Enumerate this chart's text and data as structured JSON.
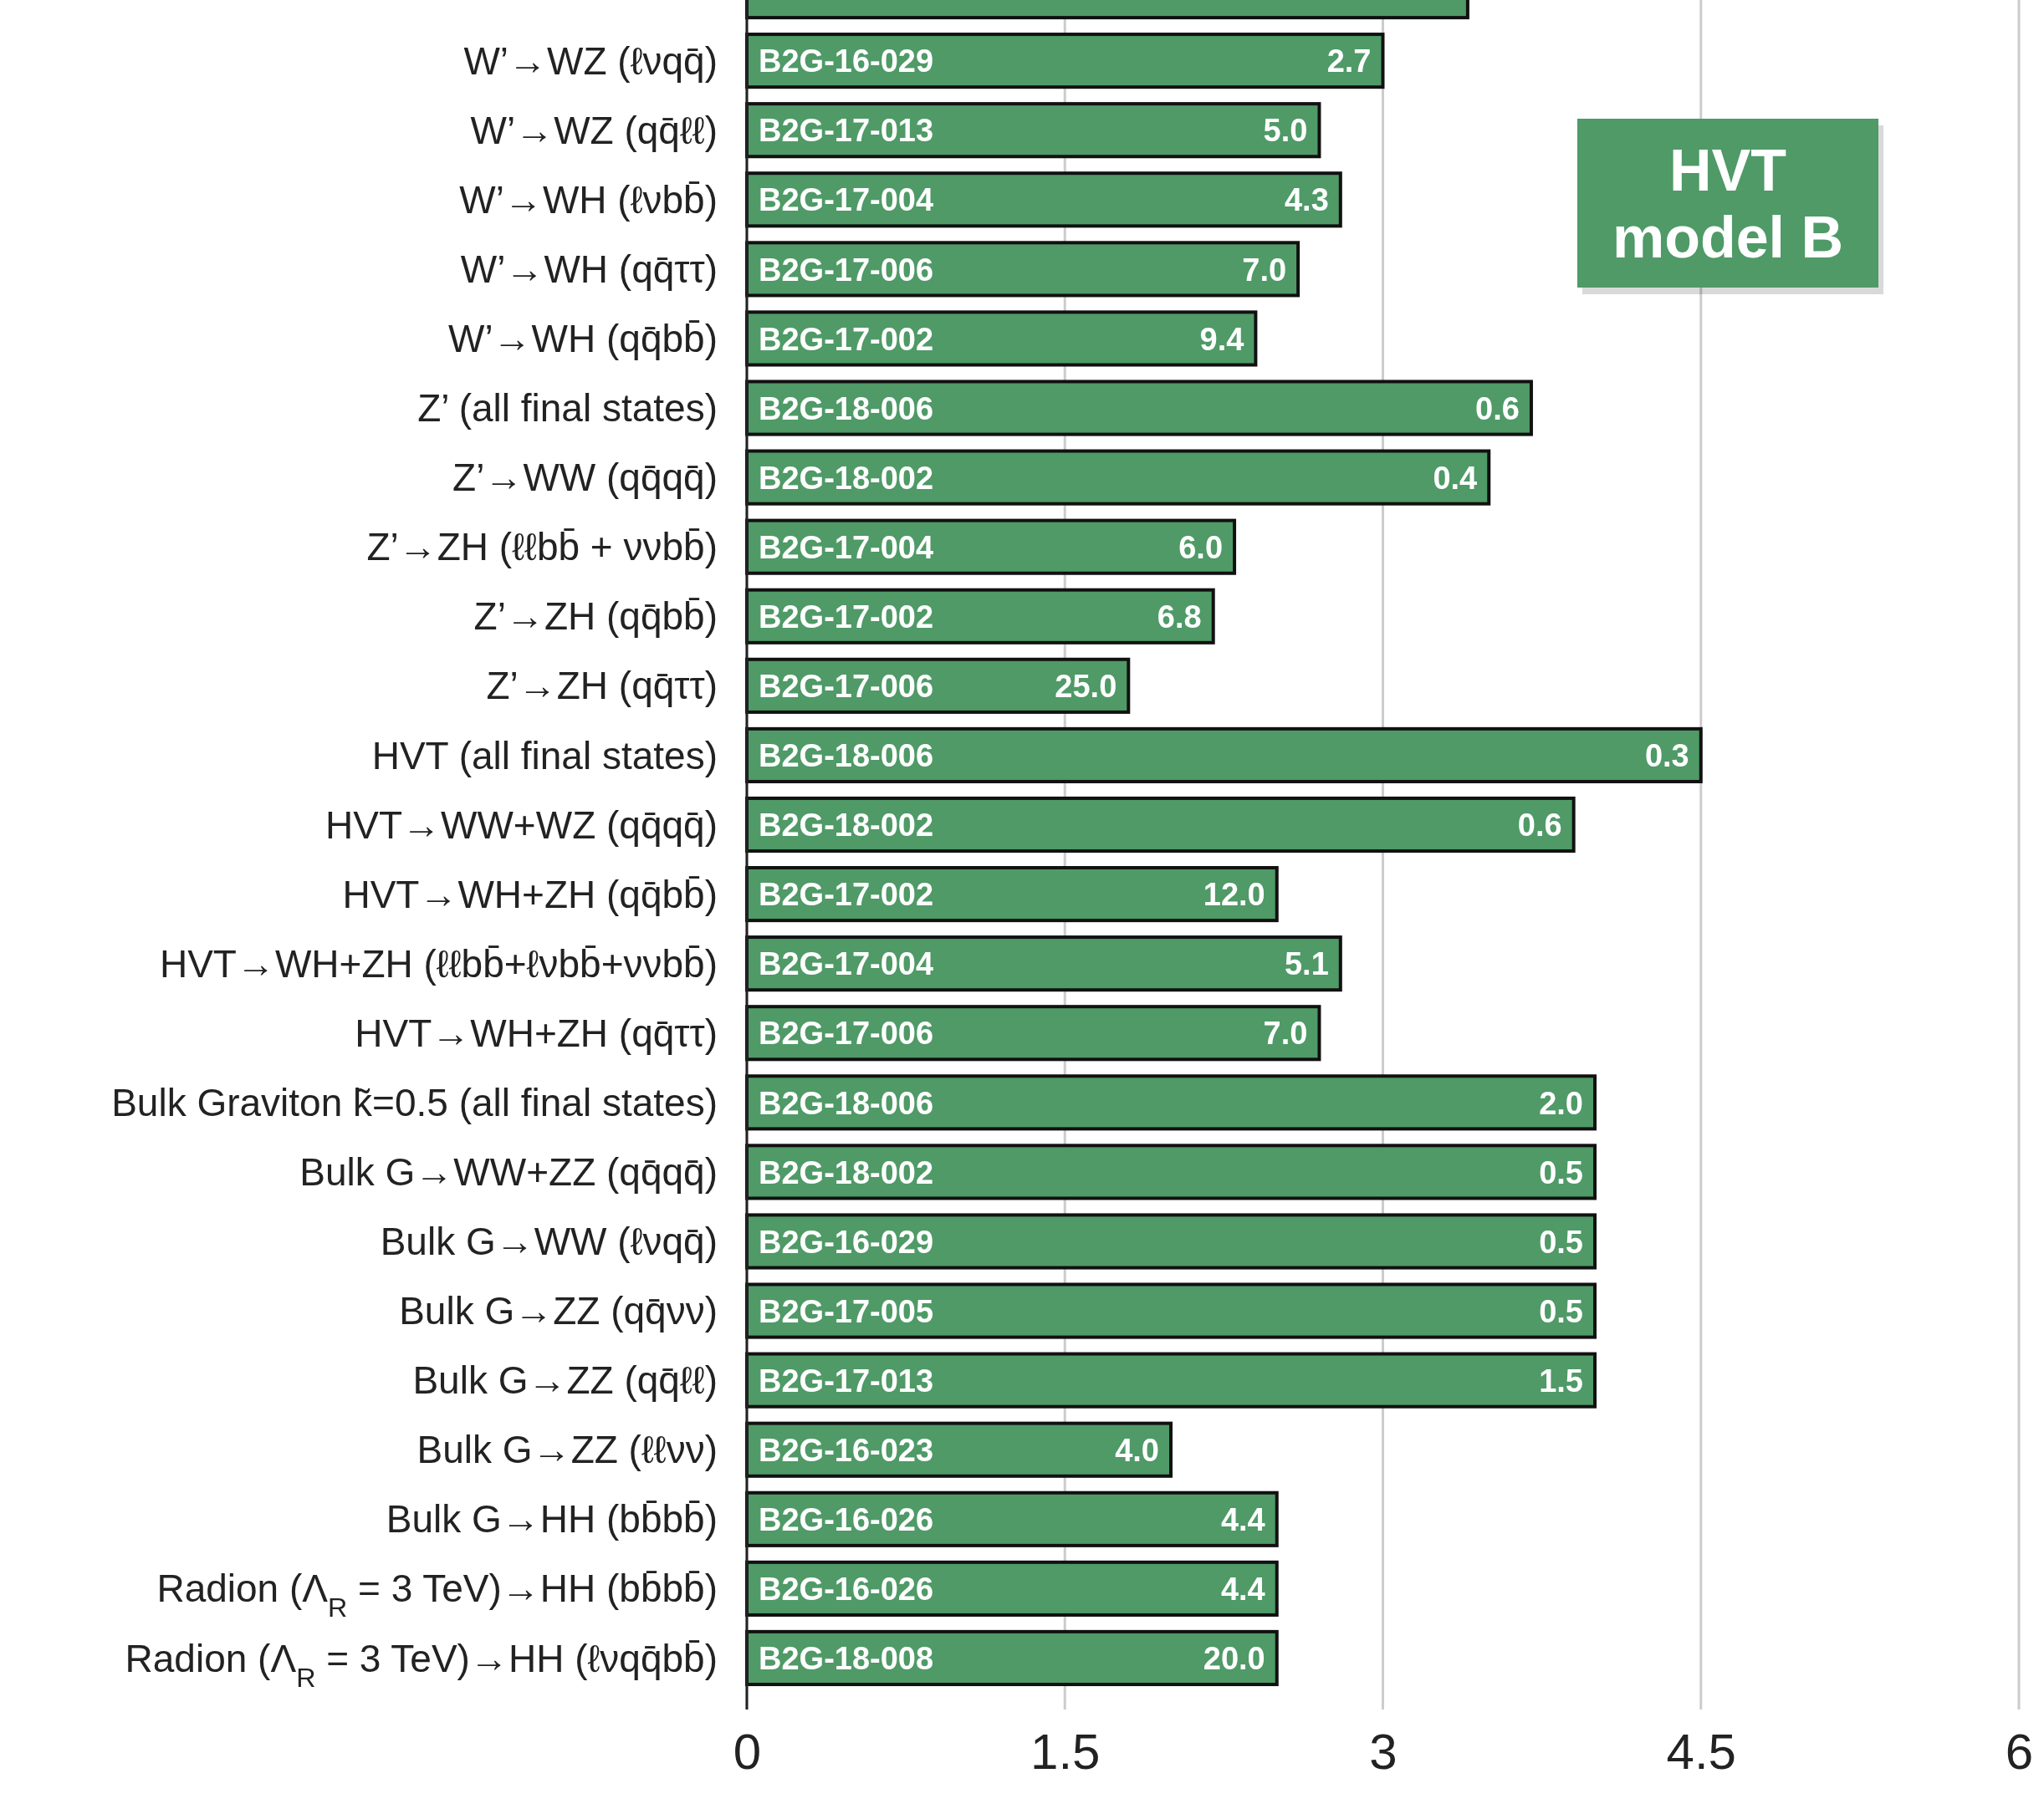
{
  "chart_data": {
    "type": "bar",
    "orientation": "horizontal",
    "categories": [
      null,
      "W’→WZ (ℓνqq̄)",
      "W’→WZ (qq̄ℓℓ)",
      "W’→WH (ℓνbb̄)",
      "W’→WH (qq̄ττ)",
      "W’→WH (qq̄bb̄)",
      "Z’ (all final states)",
      "Z’→WW (qq̄qq̄)",
      "Z’→ZH (ℓℓbb̄ + ννbb̄)",
      "Z’→ZH (qq̄bb̄)",
      "Z’→ZH (qq̄ττ)",
      "HVT (all final states)",
      "HVT→WW+WZ (qq̄qq̄)",
      "HVT→WH+ZH (qq̄bb̄)",
      "HVT→WH+ZH (ℓℓbb̄+ℓνbb̄+ννbb̄)",
      "HVT→WH+ZH (qq̄ττ)",
      "Bulk Graviton k̃=0.5 (all final states)",
      "Bulk G→WW+ZZ (qq̄qq̄)",
      "Bulk G→WW (ℓνqq̄)",
      "Bulk G→ZZ (qq̄νν)",
      "Bulk G→ZZ (qq̄ℓℓ)",
      "Bulk G→ZZ (ℓℓνν)",
      "Bulk G→HH (bb̄bb̄)",
      "Radion (Λ$_{R}$ = 3 TeV)→HH (bb̄bb̄)",
      "Radion (Λ$_{R}$ = 3 TeV)→HH (ℓνqq̄bb̄)"
    ],
    "values": [
      3.4,
      3.0,
      2.7,
      2.8,
      2.6,
      2.4,
      3.7,
      3.5,
      2.3,
      2.2,
      1.8,
      4.5,
      3.9,
      2.5,
      2.8,
      2.7,
      4.0,
      4.0,
      4.0,
      4.0,
      4.0,
      2.0,
      2.5,
      2.5,
      2.5
    ],
    "color": "#4f9a67",
    "xlim": [
      0,
      6
    ],
    "xticks": [
      0,
      1.5,
      3,
      4.5,
      6
    ],
    "grid": "x",
    "annotations": [
      {
        "text": "B2G-16-029",
        "x": 0,
        "y": "W’→WZ (ℓνqq̄)"
      },
      {
        "text": "2.7",
        "x": 3.0,
        "y": "W’→WZ (ℓνqq̄)"
      },
      {
        "text": "B2G-17-013",
        "x": 0,
        "y": "W’→WZ (qq̄ℓℓ)"
      },
      {
        "text": "5.0",
        "x": 2.7,
        "y": "W’→WZ (qq̄ℓℓ)"
      },
      {
        "text": "B2G-17-004",
        "x": 0,
        "y": "W’→WH (ℓνbb̄)"
      },
      {
        "text": "4.3",
        "x": 2.8,
        "y": "W’→WH (ℓνbb̄)"
      },
      {
        "text": "B2G-17-006",
        "x": 0,
        "y": "W’→WH (qq̄ττ)"
      },
      {
        "text": "7.0",
        "x": 2.6,
        "y": "W’→WH (qq̄ττ)"
      },
      {
        "text": "B2G-17-002",
        "x": 0,
        "y": "W’→WH (qq̄bb̄)"
      },
      {
        "text": "9.4",
        "x": 2.4,
        "y": "W’→WH (qq̄bb̄)"
      },
      {
        "text": "B2G-18-006",
        "x": 0,
        "y": "Z’ (all final states)"
      },
      {
        "text": "0.6",
        "x": 3.7,
        "y": "Z’ (all final states)"
      },
      {
        "text": "B2G-18-002",
        "x": 0,
        "y": "Z’→WW (qq̄qq̄)"
      },
      {
        "text": "0.4",
        "x": 3.5,
        "y": "Z’→WW (qq̄qq̄)"
      },
      {
        "text": "B2G-17-004",
        "x": 0,
        "y": "Z’→ZH (ℓℓbb̄ + ννbb̄)"
      },
      {
        "text": "6.0",
        "x": 2.3,
        "y": "Z’→ZH (ℓℓbb̄ + ννbb̄)"
      },
      {
        "text": "B2G-17-002",
        "x": 0,
        "y": "Z’→ZH (qq̄bb̄)"
      },
      {
        "text": "6.8",
        "x": 2.2,
        "y": "Z’→ZH (qq̄bb̄)"
      },
      {
        "text": "B2G-17-006",
        "x": 0,
        "y": "Z’→ZH (qq̄ττ)"
      },
      {
        "text": "25.0",
        "x": 1.8,
        "y": "Z’→ZH (qq̄ττ)"
      },
      {
        "text": "B2G-18-006",
        "x": 0,
        "y": "HVT (all final states)"
      },
      {
        "text": "0.3",
        "x": 4.5,
        "y": "HVT (all final states)"
      },
      {
        "text": "B2G-18-002",
        "x": 0,
        "y": "HVT→WW+WZ (qq̄qq̄)"
      },
      {
        "text": "0.6",
        "x": 3.9,
        "y": "HVT→WW+WZ (qq̄qq̄)"
      },
      {
        "text": "B2G-17-002",
        "x": 0,
        "y": "HVT→WH+ZH (qq̄bb̄)"
      },
      {
        "text": "12.0",
        "x": 2.5,
        "y": "HVT→WH+ZH (qq̄bb̄)"
      },
      {
        "text": "B2G-17-004",
        "x": 0,
        "y": "HVT→WH+ZH (ℓℓbb̄+ℓνbb̄+ννbb̄)"
      },
      {
        "text": "5.1",
        "x": 2.8,
        "y": "HVT→WH+ZH (ℓℓbb̄+ℓνbb̄+ννbb̄)"
      },
      {
        "text": "B2G-17-006",
        "x": 0,
        "y": "HVT→WH+ZH (qq̄ττ)"
      },
      {
        "text": "7.0",
        "x": 2.7,
        "y": "HVT→WH+ZH (qq̄ττ)"
      },
      {
        "text": "B2G-18-006",
        "x": 0,
        "y": "Bulk Graviton k̃=0.5 (all final states)"
      },
      {
        "text": "2.0",
        "x": 4.0,
        "y": "Bulk Graviton k̃=0.5 (all final states)"
      },
      {
        "text": "B2G-18-002",
        "x": 0,
        "y": "Bulk G→WW+ZZ (qq̄qq̄)"
      },
      {
        "text": "0.5",
        "x": 4.0,
        "y": "Bulk G→WW+ZZ (qq̄qq̄)"
      },
      {
        "text": "B2G-16-029",
        "x": 0,
        "y": "Bulk G→WW (ℓνqq̄)"
      },
      {
        "text": "0.5",
        "x": 4.0,
        "y": "Bulk G→WW (ℓνqq̄)"
      },
      {
        "text": "B2G-17-005",
        "x": 0,
        "y": "Bulk G→ZZ (qq̄νν)"
      },
      {
        "text": "0.5",
        "x": 4.0,
        "y": "Bulk G→ZZ (qq̄νν)"
      },
      {
        "text": "B2G-17-013",
        "x": 0,
        "y": "Bulk G→ZZ (qq̄ℓℓ)"
      },
      {
        "text": "1.5",
        "x": 4.0,
        "y": "Bulk G→ZZ (qq̄ℓℓ)"
      },
      {
        "text": "B2G-16-023",
        "x": 0,
        "y": "Bulk G→ZZ (ℓℓνν)"
      },
      {
        "text": "4.0",
        "x": 2.0,
        "y": "Bulk G→ZZ (ℓℓνν)"
      },
      {
        "text": "B2G-16-026",
        "x": 0,
        "y": "Bulk G→HH (bb̄bb̄)"
      },
      {
        "text": "4.4",
        "x": 2.5,
        "y": "Bulk G→HH (bb̄bb̄)"
      },
      {
        "text": "B2G-16-026",
        "x": 0,
        "y": "Radion (Λ$_{R}$ = 3 TeV)→HH (bb̄bb̄)"
      },
      {
        "text": "4.4",
        "x": 2.5,
        "y": "Radion (Λ$_{R}$ = 3 TeV)→HH (bb̄bb̄)"
      },
      {
        "text": "B2G-18-008",
        "x": 0,
        "y": "Radion (Λ$_{R}$ = 3 TeV)→HH (ℓνqq̄bb̄)"
      },
      {
        "text": "20.0",
        "x": 2.5,
        "y": "Radion (Λ$_{R}$ = 3 TeV)→HH (ℓνqq̄bb̄)"
      },
      "HVT model B"
    ]
  }
}
